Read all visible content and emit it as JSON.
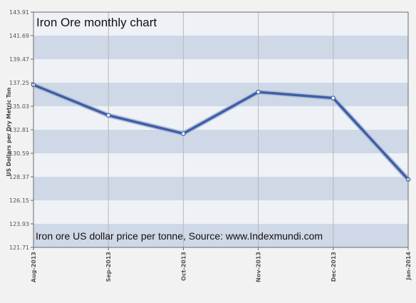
{
  "chart_data": {
    "type": "line",
    "title": "Iron Ore monthly chart",
    "annotation": "Iron ore US dollar price per tonne, Source: www.Indexmundi.com",
    "ylabel": "US Dollars per Dry Metric Ton",
    "xlabel": "",
    "categories": [
      "Aug-2013",
      "Sep-2013",
      "Oct-2013",
      "Nov-2013",
      "Dec-2013",
      "Jan-2014"
    ],
    "series": [
      {
        "values": [
          137.05,
          134.17,
          132.45,
          136.37,
          135.8,
          128.12
        ]
      }
    ],
    "ylim": [
      121.71,
      143.91
    ],
    "yticks": [
      "143.91",
      "141.69",
      "139.47",
      "137.25",
      "135.03",
      "132.81",
      "130.59",
      "128.37",
      "126.15",
      "123.93",
      "121.71"
    ],
    "grid": true,
    "colors": {
      "line": "#3d5fa8",
      "line_shadow": "#b8c2d8",
      "band": "#cfd8e6",
      "band_alt": "#eef1f6",
      "gridline": "#b9b9b9",
      "border": "#6b6b6b"
    }
  }
}
